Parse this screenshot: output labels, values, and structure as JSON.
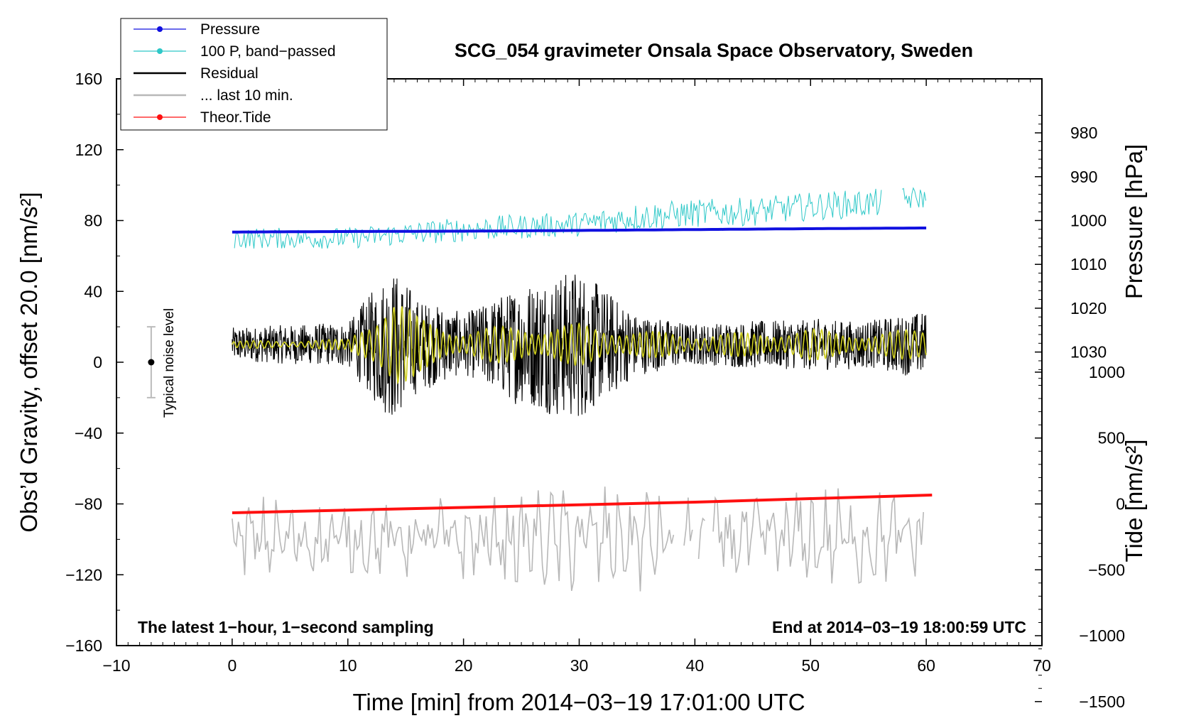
{
  "chart_data": {
    "type": "line",
    "title": "SCG_054 gravimeter Onsala Space Observatory, Sweden",
    "xlabel": "Time [min] from 2014−03−19 17:01:00 UTC",
    "ylabel_left": "Obs’d Gravity, offset 20.0 [nm/s²]",
    "ylabel_right_pressure": "Pressure [hPa]",
    "ylabel_right_tide": "Tide [nm/s²]",
    "xlim": [
      -10,
      70
    ],
    "ylim_left": [
      -160,
      160
    ],
    "x_ticks": [
      "−10",
      "0",
      "10",
      "20",
      "30",
      "40",
      "50",
      "60",
      "70"
    ],
    "x_tick_values": [
      -10,
      0,
      10,
      20,
      30,
      40,
      50,
      60,
      70
    ],
    "y_left_ticks": [
      "160",
      "120",
      "80",
      "40",
      "0",
      "−40",
      "−80",
      "−120",
      "−160"
    ],
    "y_left_tick_values": [
      160,
      120,
      80,
      40,
      0,
      -40,
      -80,
      -120,
      -160
    ],
    "pressure_axis": {
      "ticks": [
        "1030",
        "1020",
        "1010",
        "1000",
        "990",
        "980"
      ],
      "tick_values": [
        1030,
        1020,
        1010,
        1000,
        990,
        980
      ]
    },
    "tide_axis": {
      "ticks": [
        "1000",
        "500",
        "0",
        "−500",
        "−1000",
        "−1500"
      ],
      "tick_values": [
        1000,
        500,
        0,
        -500,
        -1000,
        -1500
      ]
    },
    "legend": [
      {
        "label": "Pressure",
        "color": "#1010e0",
        "marker": true
      },
      {
        "label": "100 P, band−passed",
        "color": "#2ec8c8",
        "marker": true
      },
      {
        "label": "Residual",
        "color": "#000000",
        "marker": false
      },
      {
        "label": "... last 10 min.",
        "color": "#b8b8b8",
        "marker": false
      },
      {
        "label": "Theor.Tide",
        "color": "#ff1010",
        "marker": true
      }
    ],
    "series": [
      {
        "name": "Pressure",
        "color": "#1010e0",
        "x": [
          0,
          10,
          20,
          30,
          40,
          50,
          60
        ],
        "y": [
          73.5,
          73.8,
          74.0,
          74.4,
          74.9,
          75.4,
          75.8
        ]
      },
      {
        "name": "100 P, band−passed",
        "color": "#2ec8c8",
        "x": [
          0,
          10,
          20,
          30,
          35,
          40,
          45,
          50,
          56,
          58,
          60
        ],
        "y": [
          70,
          70,
          75,
          78,
          82,
          84,
          85,
          88,
          90,
          92,
          93
        ],
        "amplitude_nm_s2": [
          6,
          6,
          7,
          7,
          8,
          8,
          8,
          8,
          8,
          7,
          6
        ]
      },
      {
        "name": "Residual",
        "color": "#000000",
        "x": [
          0,
          10,
          13,
          14,
          16,
          20,
          25,
          27,
          30,
          35,
          40,
          45,
          50,
          55,
          60
        ],
        "y": [
          10,
          10,
          10,
          10,
          10,
          10,
          10,
          10,
          10,
          10,
          10,
          10,
          10,
          10,
          10
        ],
        "amplitude_nm_s2": [
          10,
          13,
          40,
          45,
          28,
          18,
          36,
          40,
          45,
          18,
          12,
          14,
          15,
          14,
          20
        ]
      },
      {
        "name": "Residual (filtered)",
        "color": "#d0d020",
        "x": [
          0,
          10,
          13,
          14,
          16,
          20,
          25,
          27,
          30,
          35,
          40,
          45,
          50,
          55,
          60
        ],
        "y": [
          10,
          10,
          10,
          10,
          10,
          10,
          10,
          10,
          10,
          10,
          10,
          10,
          10,
          10,
          10
        ],
        "amplitude_nm_s2": [
          2,
          3,
          24,
          28,
          16,
          8,
          12,
          10,
          12,
          8,
          6,
          7,
          9,
          6,
          10
        ]
      },
      {
        "name": "... last 10 min.",
        "color": "#b8b8b8",
        "x": [
          0,
          10,
          20,
          30,
          35,
          40,
          50,
          60
        ],
        "y": [
          -100,
          -100,
          -100,
          -100,
          -100,
          -100,
          -100,
          -100
        ],
        "amplitude_nm_s2": [
          20,
          18,
          20,
          25,
          25,
          18,
          25,
          20
        ]
      },
      {
        "name": "Theor.Tide",
        "color": "#ff1010",
        "x": [
          0,
          10,
          20,
          30,
          40,
          50,
          60.5
        ],
        "y": [
          -85,
          -83.5,
          -82,
          -80.5,
          -79,
          -77,
          -75
        ]
      }
    ],
    "noise_indicator": {
      "label": "Typical noise level",
      "x": -7,
      "y": 0,
      "ymin": -20,
      "ymax": 20
    },
    "annotations": {
      "left": "The latest 1−hour, 1−second sampling",
      "right": "End at 2014−03−19 18:00:59 UTC"
    }
  }
}
